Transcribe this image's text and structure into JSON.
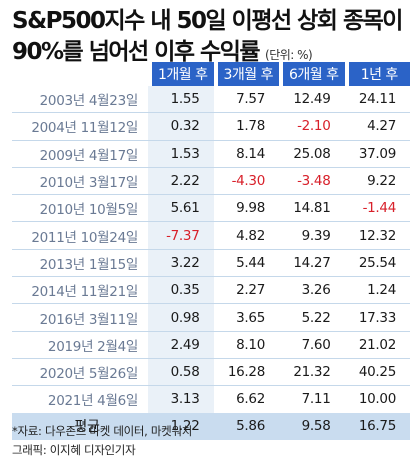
{
  "title": {
    "line1": "S&P500지수 내 50일 이평선 상회 종목이",
    "line2": "90%를 넘어선 이후 수익률",
    "unit": "(단위: %)"
  },
  "colors": {
    "header_bg": "#2b63c7",
    "negative_text": "#d8202a",
    "average_row_bg": "#c9dcef"
  },
  "table": {
    "headers": [
      "1개월 후",
      "3개월 후",
      "6개월 후",
      "1년 후"
    ],
    "rows": [
      {
        "date": "2003년 4월23일",
        "values": [
          "1.55",
          "7.57",
          "12.49",
          "24.11"
        ]
      },
      {
        "date": "2004년 11월12일",
        "values": [
          "0.32",
          "1.78",
          "-2.10",
          "4.27"
        ]
      },
      {
        "date": "2009년 4월17일",
        "values": [
          "1.53",
          "8.14",
          "25.08",
          "37.09"
        ]
      },
      {
        "date": "2010년 3월17일",
        "values": [
          "2.22",
          "-4.30",
          "-3.48",
          "9.22"
        ]
      },
      {
        "date": "2010년 10월5일",
        "values": [
          "5.61",
          "9.98",
          "14.81",
          "-1.44"
        ]
      },
      {
        "date": "2011년 10월24일",
        "values": [
          "-7.37",
          "4.82",
          "9.39",
          "12.32"
        ]
      },
      {
        "date": "2013년 1월15일",
        "values": [
          "3.22",
          "5.44",
          "14.27",
          "25.54"
        ]
      },
      {
        "date": "2014년 11월21일",
        "values": [
          "0.35",
          "2.27",
          "3.26",
          "1.24"
        ]
      },
      {
        "date": "2016년 3월11일",
        "values": [
          "0.98",
          "3.65",
          "5.22",
          "17.33"
        ]
      },
      {
        "date": "2019년 2월4일",
        "values": [
          "2.49",
          "8.10",
          "7.60",
          "21.02"
        ]
      },
      {
        "date": "2020년 5월26일",
        "values": [
          "0.58",
          "16.28",
          "21.32",
          "40.25"
        ]
      },
      {
        "date": "2021년 4월6일",
        "values": [
          "3.13",
          "6.62",
          "7.11",
          "10.00"
        ]
      }
    ],
    "average": {
      "label": "평균",
      "values": [
        "1.22",
        "5.86",
        "9.58",
        "16.75"
      ]
    }
  },
  "footer": {
    "source": "*자료: 다우존스 마켓 데이터, 마켓워치",
    "credit": "그래픽: 이지혜 디자인기자"
  }
}
